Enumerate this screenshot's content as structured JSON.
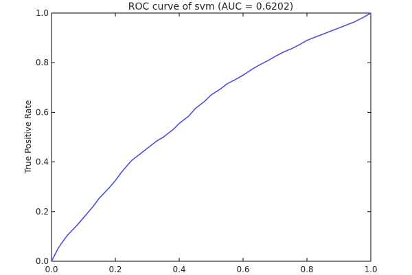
{
  "chart_data": {
    "type": "line",
    "title": "ROC curve of svm (AUC = 0.6202)",
    "xlabel": "",
    "ylabel": "True Positive Rate",
    "xlim": [
      0.0,
      1.0
    ],
    "ylim": [
      0.0,
      1.0
    ],
    "xticks": [
      "0.0",
      "0.2",
      "0.4",
      "0.6",
      "0.8",
      "1.0"
    ],
    "yticks": [
      "0.0",
      "0.2",
      "0.4",
      "0.6",
      "0.8",
      "1.0"
    ],
    "grid": false,
    "series": [
      {
        "color": "#4a4fe0",
        "x": [
          0.0,
          0.01,
          0.02,
          0.03,
          0.05,
          0.08,
          0.1,
          0.13,
          0.15,
          0.18,
          0.2,
          0.22,
          0.25,
          0.28,
          0.3,
          0.33,
          0.35,
          0.38,
          0.4,
          0.43,
          0.45,
          0.48,
          0.5,
          0.53,
          0.55,
          0.58,
          0.6,
          0.63,
          0.65,
          0.68,
          0.7,
          0.73,
          0.75,
          0.78,
          0.8,
          0.83,
          0.85,
          0.88,
          0.9,
          0.93,
          0.95,
          0.98,
          1.0
        ],
        "y": [
          0.0,
          0.025,
          0.05,
          0.07,
          0.105,
          0.145,
          0.175,
          0.22,
          0.255,
          0.295,
          0.325,
          0.36,
          0.405,
          0.435,
          0.455,
          0.485,
          0.5,
          0.53,
          0.555,
          0.585,
          0.615,
          0.645,
          0.67,
          0.695,
          0.715,
          0.735,
          0.75,
          0.775,
          0.79,
          0.81,
          0.825,
          0.845,
          0.855,
          0.875,
          0.89,
          0.905,
          0.915,
          0.93,
          0.94,
          0.955,
          0.965,
          0.985,
          1.0
        ]
      }
    ]
  }
}
